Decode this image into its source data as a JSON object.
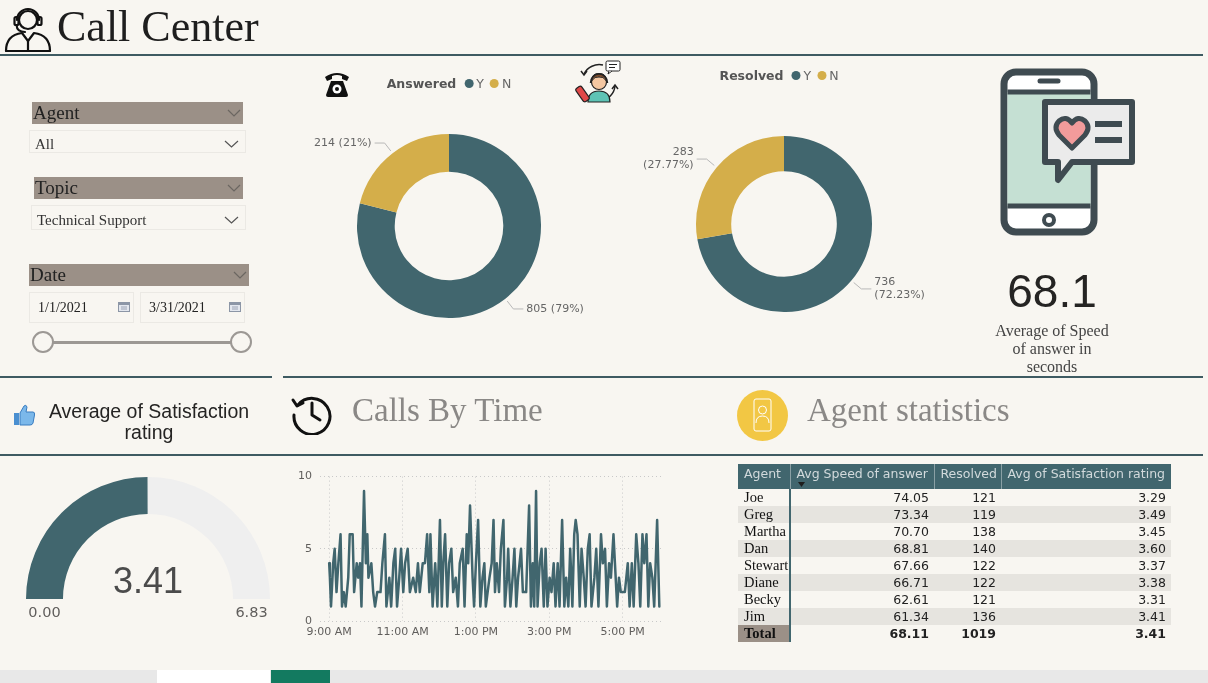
{
  "chart_data": [
    {
      "type": "other",
      "title": "Call Center",
      "annotations": [
        "Agent",
        "All",
        "Topic",
        "Technical Support",
        "Date",
        "1/1/2021",
        "3/31/2021"
      ]
    },
    {
      "type": "donut",
      "legend_title": "Answered",
      "categories": [
        "Y",
        "N"
      ],
      "values": [
        805,
        214
      ],
      "colors": [
        "#41666e",
        "#d4ae4a"
      ],
      "value_labels": [
        "805 (79%)",
        "214 (21%)"
      ],
      "legend": "top"
    },
    {
      "type": "donut",
      "legend_title": "Resolved",
      "categories": [
        "Y",
        "N"
      ],
      "values": [
        736,
        283
      ],
      "colors": [
        "#41666e",
        "#d4ae4a"
      ],
      "value_labels": [
        "736 (72.23%)",
        "283 (27.77%)"
      ],
      "legend": "top"
    },
    {
      "type": "other",
      "title": "Average of Speed of answer in seconds",
      "annotations": [
        "68.1"
      ]
    },
    {
      "type": "donut",
      "title": "Average of Satisfaction rating",
      "categories": [
        null,
        null
      ],
      "values": [
        3.41,
        3.42
      ],
      "colors": [
        "#41666e",
        "#efefef"
      ],
      "value_labels": [
        "3.41",
        null
      ],
      "annotations": [
        "0.00",
        "6.83"
      ]
    },
    {
      "type": "line",
      "title": "Calls By Time",
      "x": [
        9,
        9.02,
        9.05,
        9.11,
        9.15,
        9.2,
        9.25,
        9.31,
        9.35,
        9.4,
        9.45,
        9.52,
        9.56,
        9.64,
        9.68,
        9.75,
        9.79,
        9.84,
        9.88,
        9.95,
        10,
        10.04,
        10.07,
        10.15,
        10.2,
        10.25,
        10.31,
        10.4,
        10.45,
        10.52,
        10.56,
        10.64,
        10.69,
        10.75,
        10.8,
        10.85,
        10.91,
        10.96,
        11.02,
        11.07,
        11.14,
        11.2,
        11.29,
        11.36,
        11.42,
        11.47,
        11.55,
        11.61,
        11.67,
        11.73,
        11.76,
        11.82,
        11.89,
        11.95,
        12.02,
        12.07,
        12.11,
        12.16,
        12.22,
        12.27,
        12.33,
        12.38,
        12.45,
        12.51,
        12.56,
        12.64,
        12.69,
        12.75,
        12.79,
        12.84,
        12.91,
        12.95,
        13,
        13.06,
        13.12,
        13.18,
        13.23,
        13.27,
        13.32,
        13.37,
        13.43,
        13.48,
        13.52,
        13.57,
        13.63,
        13.68,
        13.75,
        13.79,
        13.85,
        13.88,
        13.94,
        14,
        14.05,
        14.1,
        14.15,
        14.23,
        14.28,
        14.37,
        14.45,
        14.5,
        14.55,
        14.59,
        14.64,
        14.68,
        14.74,
        14.79,
        14.85,
        14.9,
        14.95,
        15.01,
        15.06,
        15.12,
        15.17,
        15.23,
        15.28,
        15.35,
        15.41,
        15.46,
        15.52,
        15.57,
        15.63,
        15.68,
        15.72,
        15.77,
        15.83,
        15.88,
        15.94,
        15.99,
        16.05,
        16.1,
        16.15,
        16.23,
        16.28,
        16.34,
        16.41,
        16.46,
        16.52,
        16.57,
        16.63,
        16.68,
        16.75,
        16.79,
        16.85,
        16.9,
        16.95,
        17.06,
        17.14,
        17.19,
        17.25,
        17.3,
        17.37,
        17.43,
        17.48,
        17.54,
        17.59,
        17.65,
        17.7,
        17.75,
        17.81,
        17.86,
        17.94,
        18
      ],
      "values": [
        4,
        3,
        1,
        4,
        5,
        2,
        4,
        6,
        1,
        2,
        1,
        3,
        6,
        6,
        2,
        4,
        3,
        4,
        1,
        9,
        4,
        6,
        3,
        4,
        2,
        1,
        2,
        2,
        4,
        6,
        1,
        3,
        1,
        4,
        5,
        1,
        3,
        5,
        2,
        4,
        5,
        2,
        3,
        2,
        4,
        2,
        4,
        4,
        6,
        2,
        6,
        1,
        4,
        1,
        7,
        1,
        4,
        6,
        1,
        4,
        5,
        2,
        3,
        1,
        4,
        5,
        1,
        6,
        4,
        8,
        3,
        1,
        4,
        7,
        1,
        3,
        4,
        1,
        2,
        3,
        4,
        7,
        2,
        4,
        2,
        5,
        7,
        1,
        3,
        5,
        1,
        3,
        5,
        1,
        3,
        5,
        2,
        2,
        8,
        1,
        4,
        1,
        9,
        1,
        4,
        5,
        1,
        5,
        1,
        3,
        2,
        4,
        1,
        4,
        1,
        7,
        1,
        3,
        1,
        5,
        1,
        6,
        7,
        6,
        1,
        5,
        3,
        1,
        5,
        6,
        1,
        3,
        5,
        1,
        6,
        4,
        5,
        1,
        4,
        3,
        6,
        4,
        1,
        3,
        2,
        2,
        4,
        1,
        4,
        1,
        6,
        4,
        1,
        6,
        4,
        6,
        1,
        4,
        3,
        1,
        7,
        1
      ],
      "color": "#41666e",
      "xlim": [
        8.75,
        18.1
      ],
      "xticks": [
        {
          "value": 9,
          "label": "9:00 AM"
        },
        {
          "value": 11,
          "label": "11:00 AM"
        },
        {
          "value": 13,
          "label": "1:00 PM"
        },
        {
          "value": 15,
          "label": "3:00 PM"
        },
        {
          "value": 17,
          "label": "5:00 PM"
        }
      ],
      "ylim": [
        0,
        10
      ],
      "yticks": [
        0,
        5,
        10
      ],
      "grid": true
    },
    {
      "type": "other",
      "title": "Agent statistics",
      "xlabel": "Agent",
      "categories": [
        "Joe",
        "Greg",
        "Martha",
        "Dan",
        "Stewart",
        "Diane",
        "Becky",
        "Jim",
        "Total"
      ],
      "data_labels": true,
      "series": [
        {
          "name": "Avg Speed of answer",
          "values": [
            74.05,
            73.34,
            70.7,
            68.81,
            67.66,
            66.71,
            62.61,
            61.34,
            68.11
          ],
          "value_labels": [
            "74.05",
            "73.34",
            "70.70",
            "68.81",
            "67.66",
            "66.71",
            "62.61",
            "61.34",
            "68.11"
          ]
        },
        {
          "name": "Resolved",
          "values": [
            121,
            119,
            138,
            140,
            122,
            122,
            121,
            136,
            1019
          ]
        },
        {
          "name": "Avg of Satisfaction rating",
          "values": [
            3.29,
            3.49,
            3.45,
            3.6,
            3.37,
            3.38,
            3.31,
            3.41,
            3.41
          ],
          "value_labels": [
            "3.29",
            "3.49",
            "3.45",
            "3.60",
            "3.37",
            "3.38",
            "3.31",
            "3.41",
            "3.41"
          ]
        }
      ]
    }
  ]
}
